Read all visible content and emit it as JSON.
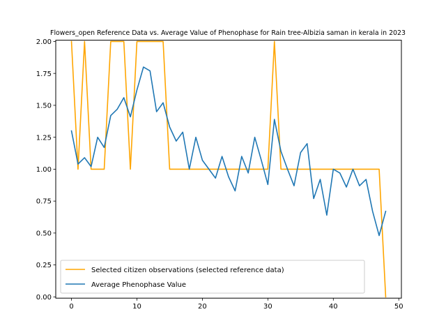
{
  "chart_data": {
    "type": "line",
    "title": "Flowers_open Reference Data vs. Average Value of Phenophase for Rain tree-Albizia saman in kerala in 2023",
    "xlabel": "",
    "ylabel": "",
    "xlim": [
      -2.4,
      50.4
    ],
    "ylim": [
      -0.01,
      2.01
    ],
    "xticks": [
      0,
      10,
      20,
      30,
      40,
      50
    ],
    "xtick_labels": [
      "0",
      "10",
      "20",
      "30",
      "40",
      "50"
    ],
    "yticks": [
      0.0,
      0.25,
      0.5,
      0.75,
      1.0,
      1.25,
      1.5,
      1.75,
      2.0
    ],
    "ytick_labels": [
      "0.00",
      "0.25",
      "0.50",
      "0.75",
      "1.00",
      "1.25",
      "1.50",
      "1.75",
      "2.00"
    ],
    "grid": false,
    "legend_position": "lower-left",
    "series": [
      {
        "name": "Selected citizen observations (selected reference data)",
        "color": "#ffa500",
        "x": [
          0,
          1,
          2,
          3,
          4,
          5,
          6,
          7,
          8,
          9,
          10,
          11,
          12,
          13,
          14,
          15,
          16,
          17,
          18,
          19,
          20,
          21,
          22,
          23,
          24,
          25,
          26,
          27,
          28,
          29,
          30,
          31,
          32,
          33,
          34,
          35,
          36,
          37,
          38,
          39,
          40,
          41,
          42,
          43,
          44,
          45,
          46,
          47,
          48
        ],
        "values": [
          2.0,
          1.0,
          2.0,
          1.0,
          1.0,
          1.0,
          2.0,
          2.0,
          2.0,
          1.0,
          2.0,
          2.0,
          2.0,
          2.0,
          2.0,
          1.0,
          1.0,
          1.0,
          1.0,
          1.0,
          1.0,
          1.0,
          1.0,
          1.0,
          1.0,
          1.0,
          1.0,
          1.0,
          1.0,
          1.0,
          1.0,
          2.0,
          1.0,
          1.0,
          1.0,
          1.0,
          1.0,
          1.0,
          1.0,
          1.0,
          1.0,
          1.0,
          1.0,
          1.0,
          1.0,
          1.0,
          1.0,
          1.0,
          0.0
        ]
      },
      {
        "name": "Average Phenophase Value",
        "color": "#1f77b4",
        "x": [
          0,
          1,
          2,
          3,
          4,
          5,
          6,
          7,
          8,
          9,
          10,
          11,
          12,
          13,
          14,
          15,
          16,
          17,
          18,
          19,
          20,
          21,
          22,
          23,
          24,
          25,
          26,
          27,
          28,
          29,
          30,
          31,
          32,
          33,
          34,
          35,
          36,
          37,
          38,
          39,
          40,
          41,
          42,
          43,
          44,
          45,
          46,
          47,
          48
        ],
        "values": [
          1.3,
          1.04,
          1.09,
          1.02,
          1.25,
          1.17,
          1.42,
          1.47,
          1.56,
          1.41,
          1.62,
          1.8,
          1.77,
          1.45,
          1.52,
          1.33,
          1.22,
          1.29,
          1.0,
          1.25,
          1.07,
          1.0,
          0.93,
          1.1,
          0.94,
          0.83,
          1.1,
          0.97,
          1.25,
          1.07,
          0.88,
          1.39,
          1.14,
          1.0,
          0.87,
          1.13,
          1.2,
          0.77,
          0.92,
          0.64,
          1.0,
          0.97,
          0.86,
          1.0,
          0.87,
          0.92,
          0.67,
          0.48,
          0.67
        ]
      }
    ]
  }
}
